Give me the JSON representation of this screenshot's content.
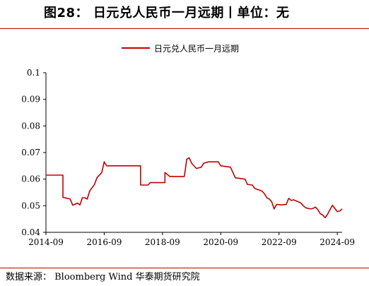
{
  "header": {
    "title": "图28：  日元兑人民币一月远期丨单位：无"
  },
  "footer": {
    "source": "数据来源：  Bloomberg Wind 华泰期货研究院"
  },
  "colors": {
    "series": "#c00000",
    "rule": "#c00000",
    "axis": "#000000"
  },
  "chart_data": {
    "type": "line",
    "title": "",
    "xlabel": "",
    "ylabel": "",
    "ylim": [
      0.04,
      0.1
    ],
    "yticks": [
      0.04,
      0.05,
      0.06,
      0.07,
      0.08,
      0.09,
      0.1
    ],
    "ytick_labels": [
      "0.04",
      "0.05",
      "0.06",
      "0.07",
      "0.08",
      "0.09",
      "0.1"
    ],
    "xlim": [
      "2014-09",
      "2024-11"
    ],
    "xticks": [
      "2014-09",
      "2016-09",
      "2018-09",
      "2020-09",
      "2022-09",
      "2024-09"
    ],
    "grid": false,
    "legend": "top-center",
    "series": [
      {
        "name": "日元兑人民币一月远期",
        "color": "#c00000",
        "points": [
          [
            "2014-09",
            0.0615
          ],
          [
            "2015-04",
            0.0615
          ],
          [
            "2015-04",
            0.0532
          ],
          [
            "2015-07",
            0.0525
          ],
          [
            "2015-08",
            0.0502
          ],
          [
            "2015-10",
            0.051
          ],
          [
            "2015-11",
            0.0503
          ],
          [
            "2015-12",
            0.053
          ],
          [
            "2016-01",
            0.053
          ],
          [
            "2016-02",
            0.0525
          ],
          [
            "2016-03",
            0.0555
          ],
          [
            "2016-05",
            0.058
          ],
          [
            "2016-06",
            0.0605
          ],
          [
            "2016-08",
            0.0625
          ],
          [
            "2016-09",
            0.0665
          ],
          [
            "2016-10",
            0.065
          ],
          [
            "2017-01",
            0.065
          ],
          [
            "2017-06",
            0.065
          ],
          [
            "2017-12",
            0.065
          ],
          [
            "2017-12",
            0.0578
          ],
          [
            "2018-03",
            0.0578
          ],
          [
            "2018-04",
            0.0587
          ],
          [
            "2018-06",
            0.0587
          ],
          [
            "2018-10",
            0.0587
          ],
          [
            "2018-10",
            0.0625
          ],
          [
            "2018-12",
            0.061
          ],
          [
            "2019-03",
            0.061
          ],
          [
            "2019-06",
            0.061
          ],
          [
            "2019-07",
            0.0675
          ],
          [
            "2019-08",
            0.068
          ],
          [
            "2019-09",
            0.066
          ],
          [
            "2019-11",
            0.064
          ],
          [
            "2020-01",
            0.0645
          ],
          [
            "2020-02",
            0.066
          ],
          [
            "2020-04",
            0.0665
          ],
          [
            "2020-08",
            0.0665
          ],
          [
            "2020-09",
            0.065
          ],
          [
            "2021-01",
            0.0645
          ],
          [
            "2021-02",
            0.0625
          ],
          [
            "2021-03",
            0.0605
          ],
          [
            "2021-07",
            0.06
          ],
          [
            "2021-08",
            0.058
          ],
          [
            "2021-10",
            0.0578
          ],
          [
            "2021-11",
            0.0565
          ],
          [
            "2022-02",
            0.0555
          ],
          [
            "2022-03",
            0.0545
          ],
          [
            "2022-04",
            0.053
          ],
          [
            "2022-05",
            0.0525
          ],
          [
            "2022-06",
            0.0515
          ],
          [
            "2022-07",
            0.0488
          ],
          [
            "2022-08",
            0.0505
          ],
          [
            "2022-10",
            0.0503
          ],
          [
            "2022-12",
            0.0505
          ],
          [
            "2023-01",
            0.0528
          ],
          [
            "2023-02",
            0.052
          ],
          [
            "2023-03",
            0.0522
          ],
          [
            "2023-05",
            0.0515
          ],
          [
            "2023-06",
            0.051
          ],
          [
            "2023-07",
            0.05
          ],
          [
            "2023-08",
            0.0492
          ],
          [
            "2023-10",
            0.0488
          ],
          [
            "2023-11",
            0.049
          ],
          [
            "2023-12",
            0.0495
          ],
          [
            "2024-01",
            0.0485
          ],
          [
            "2024-02",
            0.047
          ],
          [
            "2024-03",
            0.0465
          ],
          [
            "2024-04",
            0.0455
          ],
          [
            "2024-05",
            0.0468
          ],
          [
            "2024-06",
            0.0485
          ],
          [
            "2024-07",
            0.0502
          ],
          [
            "2024-08",
            0.049
          ],
          [
            "2024-09",
            0.0478
          ],
          [
            "2024-10",
            0.048
          ],
          [
            "2024-11",
            0.0488
          ]
        ]
      }
    ]
  }
}
